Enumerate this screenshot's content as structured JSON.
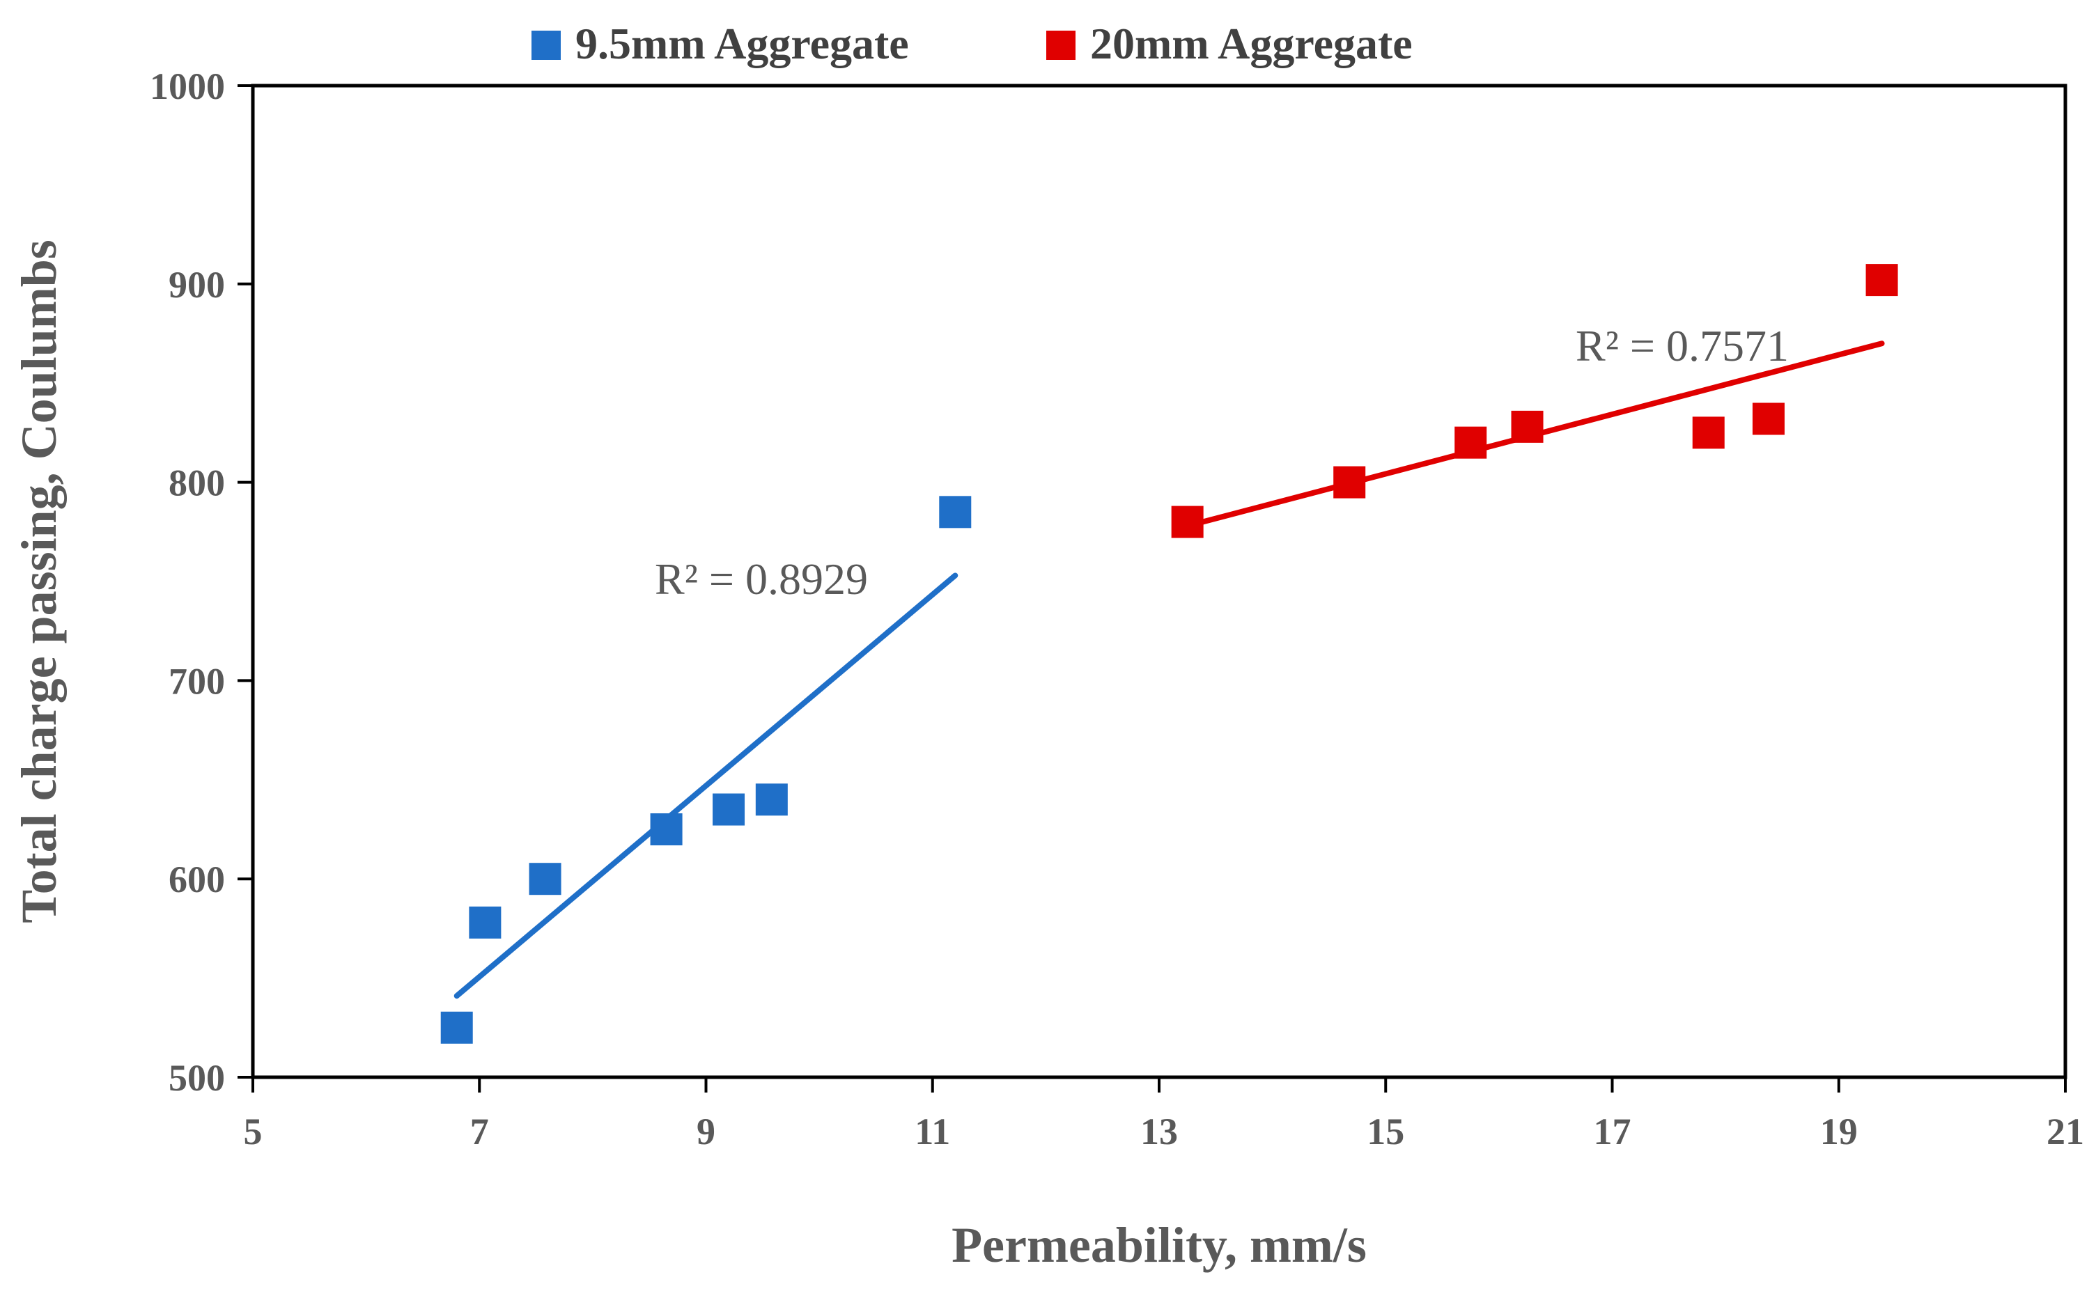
{
  "chart_data": {
    "type": "scatter",
    "title": "",
    "xlabel": "Permeability, mm/s",
    "ylabel": "Total charge passing, Coulumbs",
    "xlim": [
      5,
      21
    ],
    "ylim": [
      500,
      1000
    ],
    "x_ticks": [
      "5",
      "7",
      "9",
      "11",
      "13",
      "15",
      "17",
      "19",
      "21"
    ],
    "y_ticks": [
      "500",
      "600",
      "700",
      "800",
      "900",
      "1000"
    ],
    "grid": false,
    "legend_position": "top",
    "series": [
      {
        "name": "9.5mm Aggregate",
        "color": "#1f6fc8",
        "marker": "square",
        "points": [
          {
            "x": 6.8,
            "y": 525
          },
          {
            "x": 7.05,
            "y": 578
          },
          {
            "x": 7.58,
            "y": 600
          },
          {
            "x": 8.65,
            "y": 625
          },
          {
            "x": 9.2,
            "y": 635
          },
          {
            "x": 9.58,
            "y": 640
          },
          {
            "x": 11.2,
            "y": 785
          }
        ],
        "trendline": {
          "x": [
            6.8,
            11.2
          ],
          "y": [
            541,
            753
          ]
        },
        "r_squared_label": "R² = 0.8929"
      },
      {
        "name": "20mm Aggregate",
        "color": "#e00000",
        "marker": "square",
        "points": [
          {
            "x": 13.25,
            "y": 780
          },
          {
            "x": 14.68,
            "y": 800
          },
          {
            "x": 15.75,
            "y": 820
          },
          {
            "x": 16.25,
            "y": 828
          },
          {
            "x": 17.85,
            "y": 825
          },
          {
            "x": 18.38,
            "y": 832
          },
          {
            "x": 19.38,
            "y": 902
          }
        ],
        "trendline": {
          "x": [
            13.25,
            19.38
          ],
          "y": [
            778,
            870
          ]
        },
        "r_squared_label": "R² = 0.7571"
      }
    ]
  }
}
